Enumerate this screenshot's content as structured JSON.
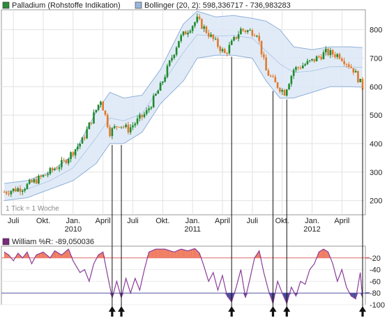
{
  "legend_top": {
    "palladium_label": "Palladium (Rohstoffe Indikation)",
    "bollinger_label": "Bollinger (20, 2): 598,336717 - 736,983283",
    "palladium_swatch_color": "#2e8b3a",
    "bollinger_swatch_color": "#9ab6dc"
  },
  "legend_bottom": {
    "william_label": "William %R: -89,050036",
    "william_swatch_color": "#7b2a7b"
  },
  "tick_note": "1 Tick = 1 Woche",
  "chart_data": [
    {
      "type": "candlestick",
      "title": "Palladium (Rohstoffe Indikation)",
      "bollinger_params": "(20, 2)",
      "bollinger_last": [
        598.336717,
        736.983283
      ],
      "ylim": [
        150,
        870
      ],
      "y_ticks": [
        "200",
        "300",
        "400",
        "500",
        "600",
        "700",
        "800"
      ],
      "x_ticks": [
        {
          "label": "Juli",
          "year": ""
        },
        {
          "label": "Okt.",
          "year": ""
        },
        {
          "label": "Jan.",
          "year": "2010"
        },
        {
          "label": "April",
          "year": ""
        },
        {
          "label": "Juli",
          "year": ""
        },
        {
          "label": "Okt.",
          "year": ""
        },
        {
          "label": "Jan.",
          "year": "2011"
        },
        {
          "label": "April",
          "year": ""
        },
        {
          "label": "Juli",
          "year": ""
        },
        {
          "label": "Okt.",
          "year": ""
        },
        {
          "label": "Jan.",
          "year": "2012"
        },
        {
          "label": "April",
          "year": ""
        }
      ],
      "close_anchors": [
        [
          0,
          230
        ],
        [
          8,
          245
        ],
        [
          17,
          285
        ],
        [
          26,
          335
        ],
        [
          34,
          410
        ],
        [
          42,
          555
        ],
        [
          46,
          440
        ],
        [
          50,
          470
        ],
        [
          54,
          450
        ],
        [
          62,
          510
        ],
        [
          68,
          600
        ],
        [
          76,
          765
        ],
        [
          84,
          835
        ],
        [
          90,
          775
        ],
        [
          96,
          715
        ],
        [
          103,
          800
        ],
        [
          110,
          790
        ],
        [
          114,
          655
        ],
        [
          118,
          610
        ],
        [
          122,
          580
        ],
        [
          126,
          660
        ],
        [
          134,
          690
        ],
        [
          140,
          720
        ],
        [
          146,
          710
        ],
        [
          152,
          660
        ],
        [
          156,
          598
        ]
      ],
      "bollinger_upper": [
        [
          0,
          260
        ],
        [
          10,
          270
        ],
        [
          20,
          300
        ],
        [
          30,
          360
        ],
        [
          40,
          510
        ],
        [
          46,
          580
        ],
        [
          52,
          560
        ],
        [
          60,
          570
        ],
        [
          68,
          660
        ],
        [
          78,
          820
        ],
        [
          84,
          865
        ],
        [
          92,
          845
        ],
        [
          100,
          850
        ],
        [
          108,
          840
        ],
        [
          114,
          830
        ],
        [
          120,
          800
        ],
        [
          126,
          740
        ],
        [
          134,
          730
        ],
        [
          142,
          740
        ],
        [
          150,
          740
        ],
        [
          156,
          737
        ]
      ],
      "bollinger_lower": [
        [
          0,
          200
        ],
        [
          10,
          210
        ],
        [
          20,
          240
        ],
        [
          30,
          270
        ],
        [
          40,
          330
        ],
        [
          46,
          400
        ],
        [
          52,
          400
        ],
        [
          60,
          440
        ],
        [
          68,
          540
        ],
        [
          78,
          620
        ],
        [
          84,
          700
        ],
        [
          92,
          710
        ],
        [
          100,
          710
        ],
        [
          108,
          700
        ],
        [
          114,
          620
        ],
        [
          120,
          560
        ],
        [
          126,
          560
        ],
        [
          134,
          580
        ],
        [
          142,
          600
        ],
        [
          150,
          600
        ],
        [
          156,
          598
        ]
      ]
    },
    {
      "type": "line",
      "title": "William %R",
      "last_value": -89.050036,
      "ylim": [
        -100,
        0
      ],
      "y_ticks": [
        "-20",
        "-40",
        "-60",
        "-80",
        "-100"
      ],
      "levels": [
        -20,
        -80
      ],
      "values_anchors": [
        [
          0,
          -10
        ],
        [
          2,
          -15
        ],
        [
          4,
          -25
        ],
        [
          6,
          -12
        ],
        [
          8,
          -20
        ],
        [
          10,
          -10
        ],
        [
          12,
          -30
        ],
        [
          14,
          -15
        ],
        [
          17,
          -10
        ],
        [
          20,
          -20
        ],
        [
          22,
          -8
        ],
        [
          25,
          -15
        ],
        [
          28,
          -5
        ],
        [
          30,
          -25
        ],
        [
          33,
          -45
        ],
        [
          35,
          -40
        ],
        [
          37,
          -60
        ],
        [
          39,
          -30
        ],
        [
          41,
          -15
        ],
        [
          43,
          -10
        ],
        [
          45,
          -50
        ],
        [
          47,
          -88
        ],
        [
          49,
          -60
        ],
        [
          51,
          -88
        ],
        [
          53,
          -55
        ],
        [
          55,
          -80
        ],
        [
          57,
          -55
        ],
        [
          59,
          -75
        ],
        [
          61,
          -40
        ],
        [
          63,
          -10
        ],
        [
          66,
          -5
        ],
        [
          70,
          -5
        ],
        [
          74,
          -10
        ],
        [
          77,
          -5
        ],
        [
          80,
          -8
        ],
        [
          83,
          -4
        ],
        [
          85,
          -12
        ],
        [
          87,
          -35
        ],
        [
          89,
          -60
        ],
        [
          91,
          -45
        ],
        [
          93,
          -75
        ],
        [
          95,
          -50
        ],
        [
          97,
          -85
        ],
        [
          99,
          -95
        ],
        [
          101,
          -70
        ],
        [
          103,
          -40
        ],
        [
          105,
          -88
        ],
        [
          107,
          -55
        ],
        [
          109,
          -20
        ],
        [
          111,
          -8
        ],
        [
          113,
          -45
        ],
        [
          115,
          -75
        ],
        [
          117,
          -98
        ],
        [
          119,
          -60
        ],
        [
          121,
          -80
        ],
        [
          123,
          -98
        ],
        [
          125,
          -70
        ],
        [
          127,
          -85
        ],
        [
          129,
          -60
        ],
        [
          131,
          -65
        ],
        [
          133,
          -40
        ],
        [
          135,
          -30
        ],
        [
          137,
          -10
        ],
        [
          139,
          -5
        ],
        [
          141,
          -10
        ],
        [
          143,
          -30
        ],
        [
          145,
          -60
        ],
        [
          147,
          -40
        ],
        [
          149,
          -70
        ],
        [
          151,
          -85
        ],
        [
          153,
          -90
        ],
        [
          155,
          -45
        ],
        [
          156,
          -89.05
        ]
      ],
      "signal_bars": [
        47,
        51,
        99,
        117,
        123,
        156
      ]
    }
  ]
}
